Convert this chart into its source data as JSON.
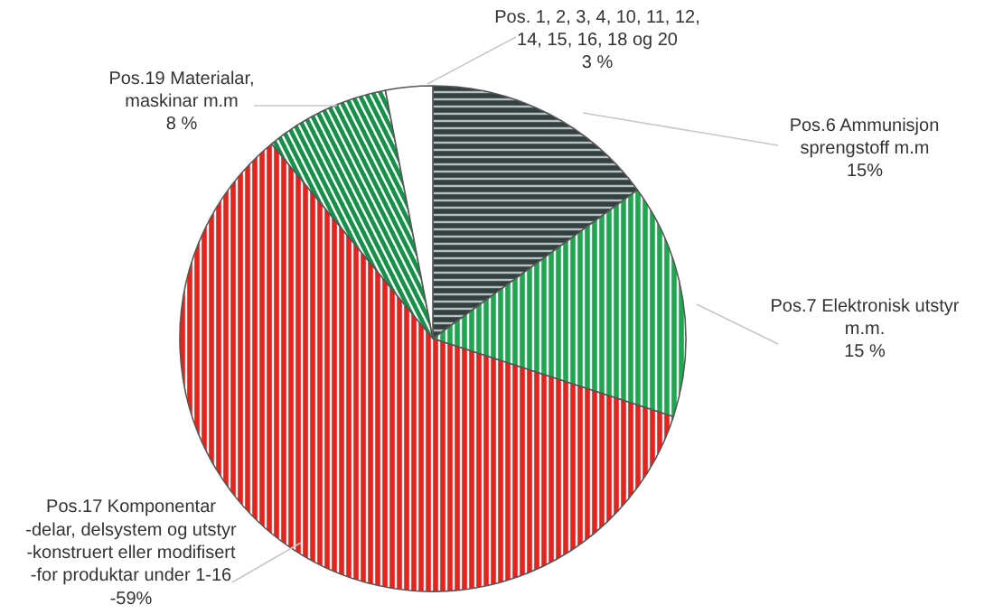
{
  "chart_data": {
    "type": "pie",
    "categories": [
      "Pos.6 Ammunisjon\nsprengstoff m.m\n15%",
      "Pos.7 Elektronisk utstyr\nm.m.\n15 %",
      "Pos.17 Komponentar\n-delar, delsystem og utstyr\n-konstruert eller modifisert\n-for produktar under 1-16\n-59%",
      "Pos.19 Materialar,\nmaskinar m.m\n8 %",
      "Pos. 1, 2, 3, 4, 10, 11, 12,\n14, 15, 16, 18 og 20\n3 %"
    ],
    "values": [
      15,
      15,
      59,
      8,
      3
    ],
    "colors": [
      "#34403f",
      "#1fa850",
      "#e8201e",
      "#17904a",
      "#ffffff"
    ]
  }
}
